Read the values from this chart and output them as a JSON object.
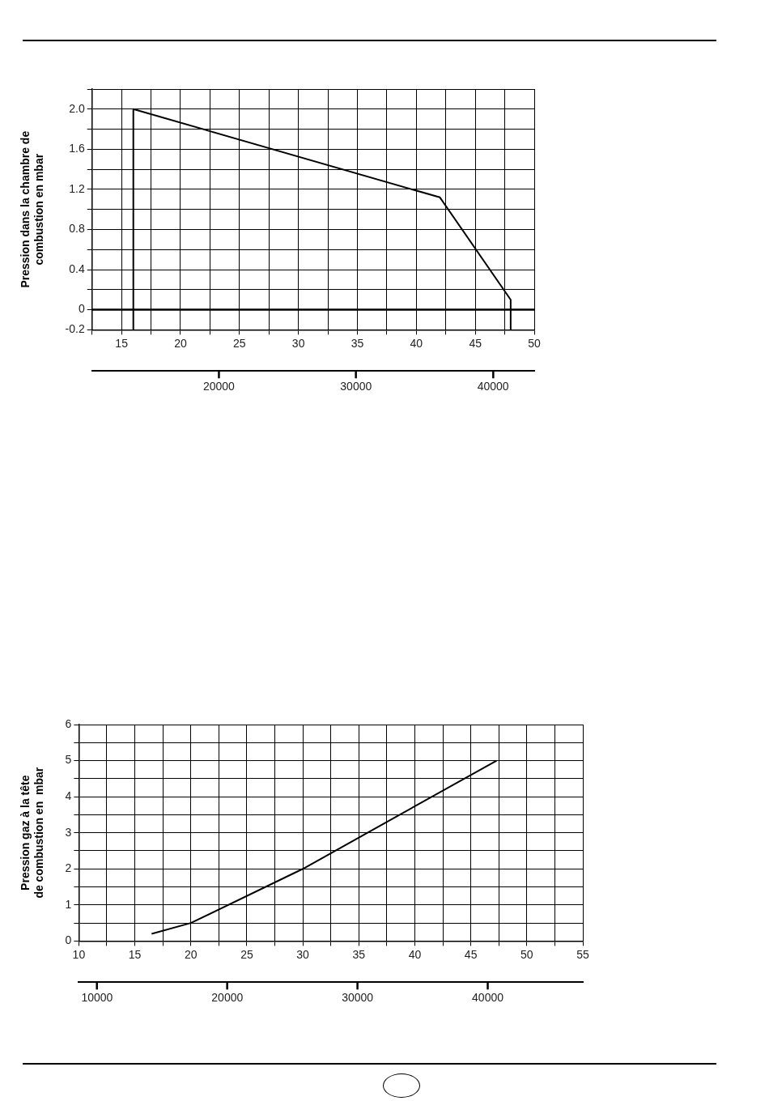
{
  "chart_data": [
    {
      "type": "line",
      "ylabel": "Pression dans la chambre de\ncombustion en mbar",
      "x": [
        16,
        16,
        42,
        48,
        48
      ],
      "values": [
        -0.2,
        2.0,
        1.12,
        0.1,
        -0.2
      ],
      "color": "#000000",
      "marker": "none",
      "line_style": "solid",
      "grid": true,
      "xlim": [
        12.5,
        50
      ],
      "xticks": [
        {
          "value": 12.5,
          "label": null
        },
        15,
        {
          "value": 17.5,
          "label": null
        },
        20,
        {
          "value": 22.5,
          "label": null
        },
        25,
        {
          "value": 27.5,
          "label": null
        },
        30,
        {
          "value": 32.5,
          "label": null
        },
        35,
        {
          "value": 37.5,
          "label": null
        },
        40,
        {
          "value": 42.5,
          "label": null
        },
        45,
        {
          "value": 47.5,
          "label": null
        },
        50
      ],
      "ylim": [
        -0.2,
        2.2
      ],
      "yticks": [
        -0.2,
        0,
        {
          "value": 0.2,
          "label": null
        },
        0.4,
        {
          "value": 0.6,
          "label": null
        },
        0.8,
        {
          "value": 1.0,
          "label": null
        },
        1.2,
        {
          "value": 1.4,
          "label": null
        },
        1.6,
        {
          "value": 1.8,
          "label": null
        },
        {
          "value": 2.0,
          "label": "2.0"
        },
        {
          "value": 2.2,
          "label": null
        }
      ],
      "x2lim": [
        10750,
        43000
      ],
      "x2ticks": [
        20000,
        30000,
        40000
      ],
      "ref_lines": [
        {
          "axis": "y",
          "value": 0
        }
      ]
    },
    {
      "type": "line",
      "ylabel": "Pression gaz à la tête\nde combustion en  mbar",
      "x": [
        16.5,
        20,
        30,
        47.3
      ],
      "values": [
        0.2,
        0.5,
        2.0,
        5.0
      ],
      "color": "#000000",
      "marker": "none",
      "line_style": "solid",
      "grid": true,
      "xlim": [
        10,
        55
      ],
      "xticks": [
        10,
        {
          "value": 12.5,
          "label": null
        },
        15,
        {
          "value": 17.5,
          "label": null
        },
        20,
        {
          "value": 22.5,
          "label": null
        },
        25,
        {
          "value": 27.5,
          "label": null
        },
        30,
        {
          "value": 32.5,
          "label": null
        },
        35,
        {
          "value": 37.5,
          "label": null
        },
        40,
        {
          "value": 42.5,
          "label": null
        },
        45,
        {
          "value": 47.5,
          "label": null
        },
        50,
        {
          "value": 52.5,
          "label": null
        },
        55
      ],
      "ylim": [
        0,
        6
      ],
      "yticks": [
        0,
        {
          "value": 0.5,
          "label": null
        },
        1,
        {
          "value": 1.5,
          "label": null
        },
        2,
        {
          "value": 2.5,
          "label": null
        },
        3,
        {
          "value": 3.5,
          "label": null
        },
        4,
        {
          "value": 4.5,
          "label": null
        },
        5,
        {
          "value": 5.5,
          "label": null
        },
        6
      ],
      "x2lim": [
        8600,
        47300
      ],
      "x2ticks": [
        10000,
        20000,
        30000,
        40000
      ]
    }
  ]
}
